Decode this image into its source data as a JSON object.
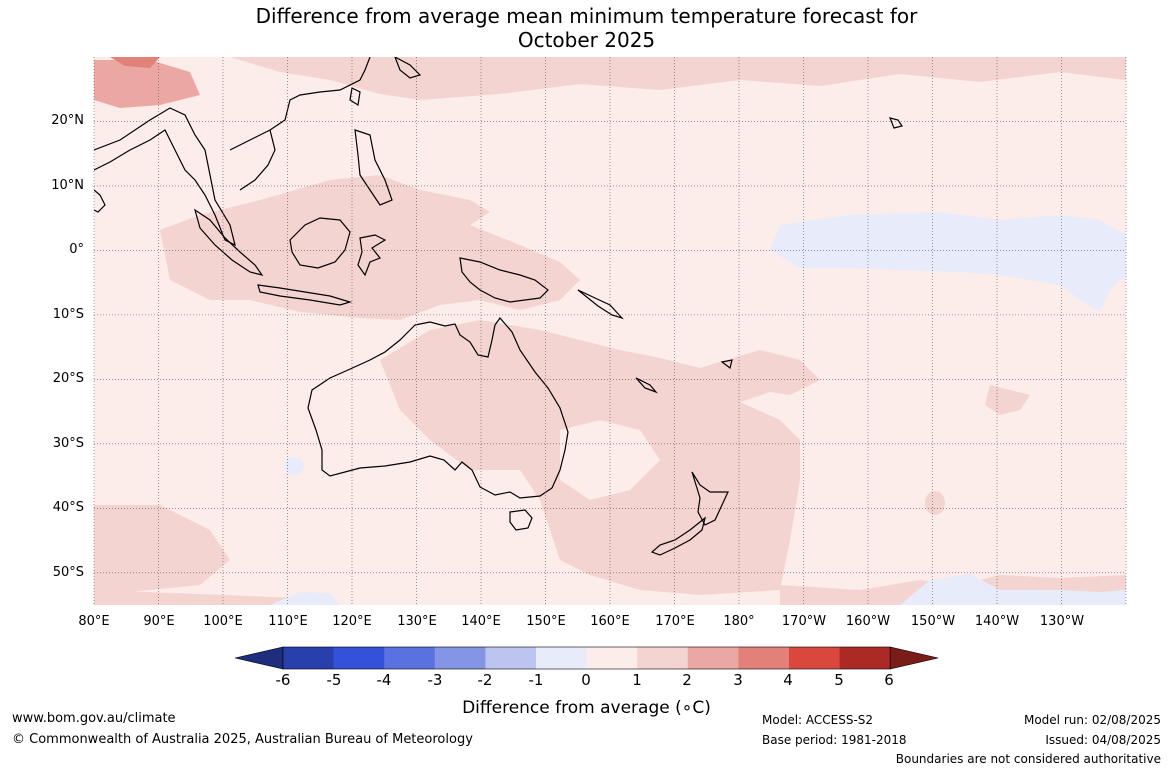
{
  "title_line1": "Difference from average mean minimum temperature forecast for",
  "title_line2": "October 2025",
  "map": {
    "lat_labels": [
      "20°N",
      "10°N",
      "0°",
      "10°S",
      "20°S",
      "30°S",
      "40°S",
      "50°S"
    ],
    "lon_labels": [
      "80°E",
      "90°E",
      "100°E",
      "110°E",
      "120°E",
      "130°E",
      "140°E",
      "150°E",
      "160°E",
      "170°E",
      "180°",
      "170°W",
      "160°W",
      "150°W",
      "140°W",
      "130°W"
    ],
    "extent": {
      "lon_min": 80,
      "lon_max": 240,
      "lat_min": -55,
      "lat_max": 30
    },
    "gridlines": "dotted"
  },
  "legend": {
    "ticks": [
      "-6",
      "-5",
      "-4",
      "-3",
      "-2",
      "-1",
      "0",
      "1",
      "2",
      "3",
      "4",
      "5",
      "6"
    ],
    "colors": [
      "#1f2d7d",
      "#2a3fae",
      "#3352d9",
      "#5a72e0",
      "#8595e6",
      "#bcc5f0",
      "#e8ecfa",
      "#fcecea",
      "#f4d4d1",
      "#eba8a2",
      "#e2807a",
      "#d9473d",
      "#ab2a26",
      "#7a1d19"
    ],
    "label": "Difference from average (∘C)"
  },
  "footer": {
    "website": "www.bom.gov.au/climate",
    "copyright": "© Commonwealth of Australia 2025, Australian Bureau of Meteorology",
    "model": "Model: ACCESS-S2",
    "base_period": "Base period: 1981-2018",
    "model_run": "Model run: 02/08/2025",
    "issued": "Issued: 04/08/2025",
    "boundaries": "Boundaries are not considered authoritative"
  }
}
